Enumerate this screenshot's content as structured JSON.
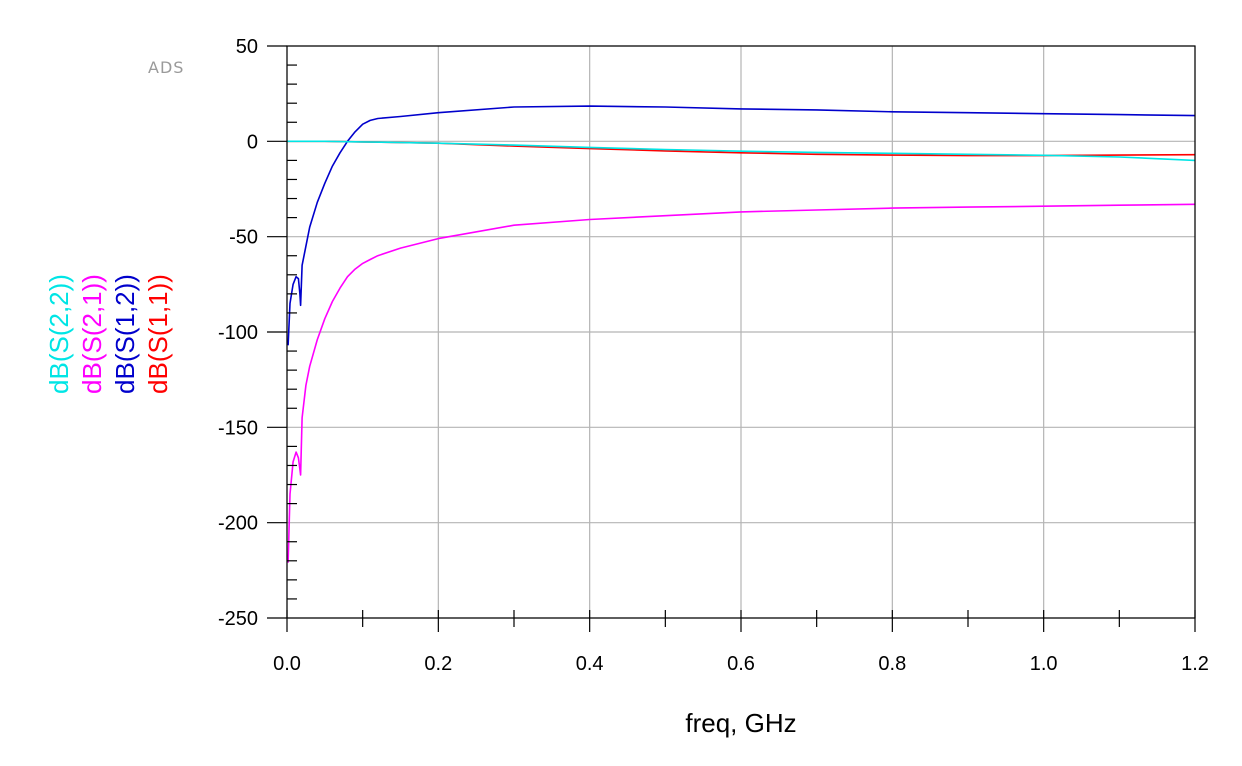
{
  "chart_data": {
    "type": "line",
    "watermark": "ADS",
    "xlabel": "freq, GHz",
    "xlim": [
      0,
      1.2
    ],
    "ylim": [
      -250,
      50
    ],
    "x_ticks": [
      "0.0",
      "0.2",
      "0.4",
      "0.6",
      "0.8",
      "1.0",
      "1.2"
    ],
    "y_ticks": [
      "50",
      "0",
      "-50",
      "-100",
      "-150",
      "-200",
      "-250"
    ],
    "grid": true,
    "series": [
      {
        "name": "dB(S(1,1))",
        "color": "#ff0000",
        "x": [
          0,
          0.05,
          0.1,
          0.2,
          0.3,
          0.4,
          0.5,
          0.6,
          0.7,
          0.8,
          0.9,
          1.0,
          1.1,
          1.2
        ],
        "y": [
          0,
          0,
          -0.3,
          -1,
          -2.5,
          -3.8,
          -5,
          -6,
          -6.8,
          -7.2,
          -7.5,
          -7.5,
          -7.2,
          -7
        ]
      },
      {
        "name": "dB(S(1,2))",
        "color": "#0000cc",
        "x": [
          0.0015,
          0.004,
          0.008,
          0.012,
          0.015,
          0.017,
          0.018,
          0.02,
          0.025,
          0.03,
          0.04,
          0.05,
          0.06,
          0.07,
          0.08,
          0.09,
          0.1,
          0.11,
          0.12,
          0.15,
          0.2,
          0.3,
          0.4,
          0.5,
          0.6,
          0.7,
          0.8,
          0.9,
          1.0,
          1.1,
          1.2
        ],
        "y": [
          -107,
          -85,
          -75,
          -71,
          -72,
          -80,
          -86,
          -65,
          -55,
          -45,
          -32,
          -22,
          -13,
          -6,
          0,
          5,
          9,
          11,
          12,
          13,
          15,
          18,
          18.5,
          18,
          17,
          16.5,
          15.5,
          15,
          14.5,
          14,
          13.5
        ]
      },
      {
        "name": "dB(S(2,1))",
        "color": "#ff00ff",
        "x": [
          0.0015,
          0.004,
          0.008,
          0.012,
          0.015,
          0.017,
          0.018,
          0.02,
          0.025,
          0.03,
          0.04,
          0.05,
          0.06,
          0.07,
          0.08,
          0.09,
          0.1,
          0.11,
          0.12,
          0.15,
          0.2,
          0.3,
          0.4,
          0.5,
          0.6,
          0.7,
          0.8,
          0.9,
          1.0,
          1.1,
          1.2
        ],
        "y": [
          -221,
          -185,
          -168,
          -163,
          -166,
          -172,
          -175,
          -145,
          -128,
          -118,
          -104,
          -93,
          -84,
          -77,
          -71,
          -67,
          -64,
          -62,
          -60,
          -56,
          -51,
          -44,
          -41,
          -39,
          -37,
          -36,
          -35,
          -34.5,
          -34,
          -33.5,
          -33
        ]
      },
      {
        "name": "dB(S(2,2))",
        "color": "#00e5e5",
        "x": [
          0,
          0.05,
          0.1,
          0.2,
          0.3,
          0.4,
          0.5,
          0.6,
          0.7,
          0.8,
          0.9,
          1.0,
          1.1,
          1.2
        ],
        "y": [
          0,
          0,
          -0.3,
          -1,
          -2,
          -3.2,
          -4.3,
          -5.2,
          -5.8,
          -6.3,
          -6.8,
          -7.3,
          -8.2,
          -10
        ]
      }
    ]
  }
}
